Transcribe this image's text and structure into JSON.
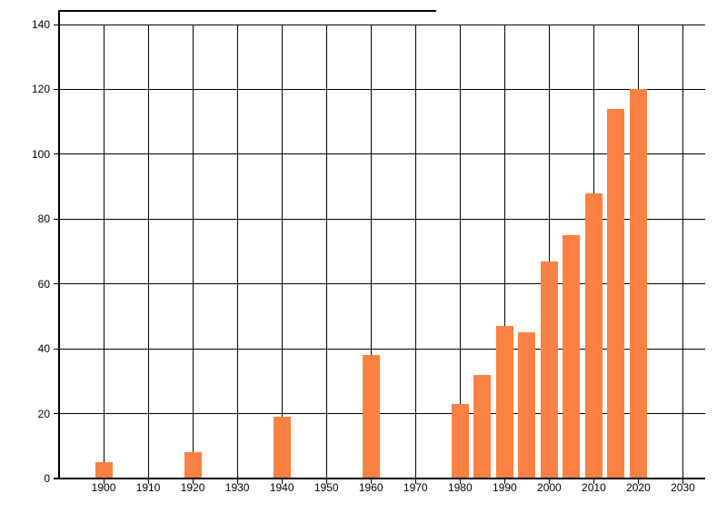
{
  "chart_data": {
    "type": "bar",
    "title": "",
    "xlabel": "",
    "ylabel": "",
    "x": [
      1900,
      1920,
      1940,
      1960,
      1980,
      1985,
      1990,
      1995,
      2000,
      2005,
      2010,
      2015,
      2020
    ],
    "values": [
      5,
      8,
      19,
      38,
      23,
      32,
      47,
      45,
      67,
      75,
      88,
      114,
      120
    ],
    "x_ticks": [
      1900,
      1910,
      1920,
      1930,
      1940,
      1950,
      1960,
      1970,
      1980,
      1990,
      2000,
      2010,
      2020,
      2030
    ],
    "y_ticks": [
      0,
      20,
      40,
      60,
      80,
      100,
      120,
      140
    ],
    "xlim": [
      1890,
      2035
    ],
    "ylim": [
      0,
      140
    ],
    "grid": true,
    "legend": "none",
    "bar_color": "#fa8142",
    "grid_color": "#000000",
    "axis_color": "#000000",
    "text_color": "#000000",
    "background": "#ffffff"
  }
}
